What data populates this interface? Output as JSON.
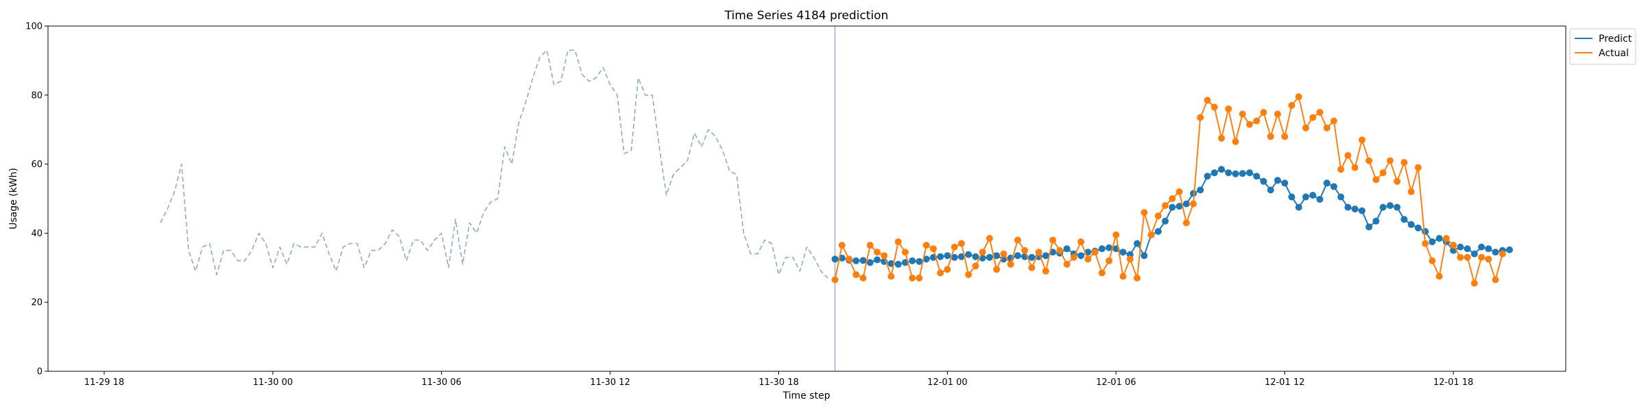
{
  "chart_data": {
    "type": "line",
    "title": "Time Series 4184 prediction",
    "xlabel": "Time step",
    "ylabel": "Usage (kWh)",
    "ylim": [
      0,
      100
    ],
    "xlim_hours": [
      -2.0,
      52.0
    ],
    "x_tick_labels": [
      "11-29 18",
      "11-30 00",
      "11-30 06",
      "11-30 12",
      "11-30 18",
      "12-01 00",
      "12-01 06",
      "12-01 12",
      "12-01 18"
    ],
    "x_tick_hours": [
      0,
      6,
      12,
      18,
      24,
      30,
      36,
      42,
      48
    ],
    "y_ticks": [
      0,
      20,
      40,
      60,
      80,
      100
    ],
    "forecast_start_hour": 26.0,
    "legend": {
      "position": "top-right"
    },
    "grid": false,
    "series": [
      {
        "name": "history",
        "style": "dashed",
        "color": "#8fa9cc",
        "x_start_hour": 2.0,
        "step_hours": 0.25,
        "values": [
          43,
          47,
          52,
          60,
          35,
          29,
          36,
          37,
          28,
          35,
          35,
          32,
          32,
          35,
          40,
          37,
          30,
          36,
          31,
          37,
          36,
          36,
          36,
          40,
          34,
          29,
          36,
          37,
          37,
          30,
          35,
          35,
          37,
          41,
          39,
          32,
          38,
          38,
          35,
          38,
          40,
          30,
          44,
          31,
          43,
          40,
          46,
          49,
          50,
          65,
          60,
          72,
          78,
          85,
          91,
          93,
          83,
          84,
          93,
          93,
          86,
          84,
          85,
          88,
          83,
          80,
          63,
          64,
          85,
          80,
          80,
          65,
          51,
          57,
          59,
          61,
          69,
          65,
          70,
          68,
          64,
          58,
          57,
          40,
          34,
          34,
          38,
          37,
          28,
          33,
          33,
          29,
          36,
          33,
          29,
          27
        ]
      },
      {
        "name": "Predict",
        "color": "#1f77b4",
        "x_start_hour": 26.0,
        "step_hours": 0.25,
        "values": [
          32.5,
          32.8,
          32.2,
          32.0,
          32.1,
          31.5,
          32.3,
          31.8,
          31.2,
          31.0,
          31.5,
          32.0,
          31.8,
          32.5,
          33.0,
          33.2,
          33.5,
          33.0,
          33.2,
          33.8,
          33.2,
          32.8,
          33.0,
          33.5,
          32.5,
          32.8,
          33.5,
          33.2,
          33.0,
          33.2,
          33.5,
          34.5,
          34.2,
          35.5,
          34.0,
          33.5,
          34.5,
          34.8,
          35.5,
          35.8,
          35.5,
          34.5,
          33.8,
          37.0,
          33.5,
          39.5,
          40.5,
          43.5,
          47.5,
          47.8,
          48.5,
          51.5,
          52.5,
          56.5,
          57.5,
          58.5,
          57.5,
          57.2,
          57.3,
          57.5,
          56.5,
          55.0,
          52.5,
          55.3,
          54.5,
          50.5,
          47.5,
          50.5,
          51.0,
          49.8,
          54.5,
          53.5,
          50.5,
          47.5,
          47.0,
          46.5,
          41.8,
          43.5,
          47.5,
          48.0,
          47.5,
          44.0,
          42.5,
          41.5,
          40.5,
          37.5,
          38.5,
          37.5,
          35.0,
          36.0,
          35.5,
          34.0,
          36.0,
          35.5,
          34.5,
          35.0,
          35.2
        ]
      },
      {
        "name": "Actual",
        "color": "#ff7f0e",
        "x_start_hour": 26.0,
        "step_hours": 0.25,
        "values": [
          26.5,
          36.5,
          32.5,
          28.0,
          27.0,
          36.5,
          34.5,
          33.5,
          27.5,
          37.5,
          34.5,
          27.0,
          27.0,
          36.5,
          35.5,
          28.5,
          29.5,
          36.0,
          37.0,
          28.0,
          30.5,
          34.5,
          38.5,
          29.5,
          34.0,
          31.0,
          38.0,
          35.0,
          30.0,
          34.5,
          29.0,
          38.0,
          35.0,
          31.0,
          33.0,
          37.5,
          32.5,
          34.5,
          28.5,
          32.0,
          39.5,
          27.5,
          32.5,
          27.0,
          46.0,
          39.5,
          45.0,
          48.0,
          50.0,
          52.0,
          43.0,
          48.5,
          73.5,
          78.5,
          76.5,
          67.5,
          76.0,
          66.5,
          74.5,
          71.5,
          72.5,
          75.0,
          68.0,
          74.5,
          68.0,
          77.0,
          79.5,
          70.5,
          73.5,
          75.0,
          70.5,
          72.5,
          58.5,
          62.5,
          59.0,
          67.0,
          61.0,
          55.5,
          57.5,
          61.0,
          55.0,
          60.5,
          52.0,
          59.0,
          37.0,
          32.0,
          27.5,
          38.5,
          36.5,
          33.0,
          33.0,
          25.5,
          33.0,
          32.5,
          26.5,
          34.0
        ]
      }
    ]
  }
}
